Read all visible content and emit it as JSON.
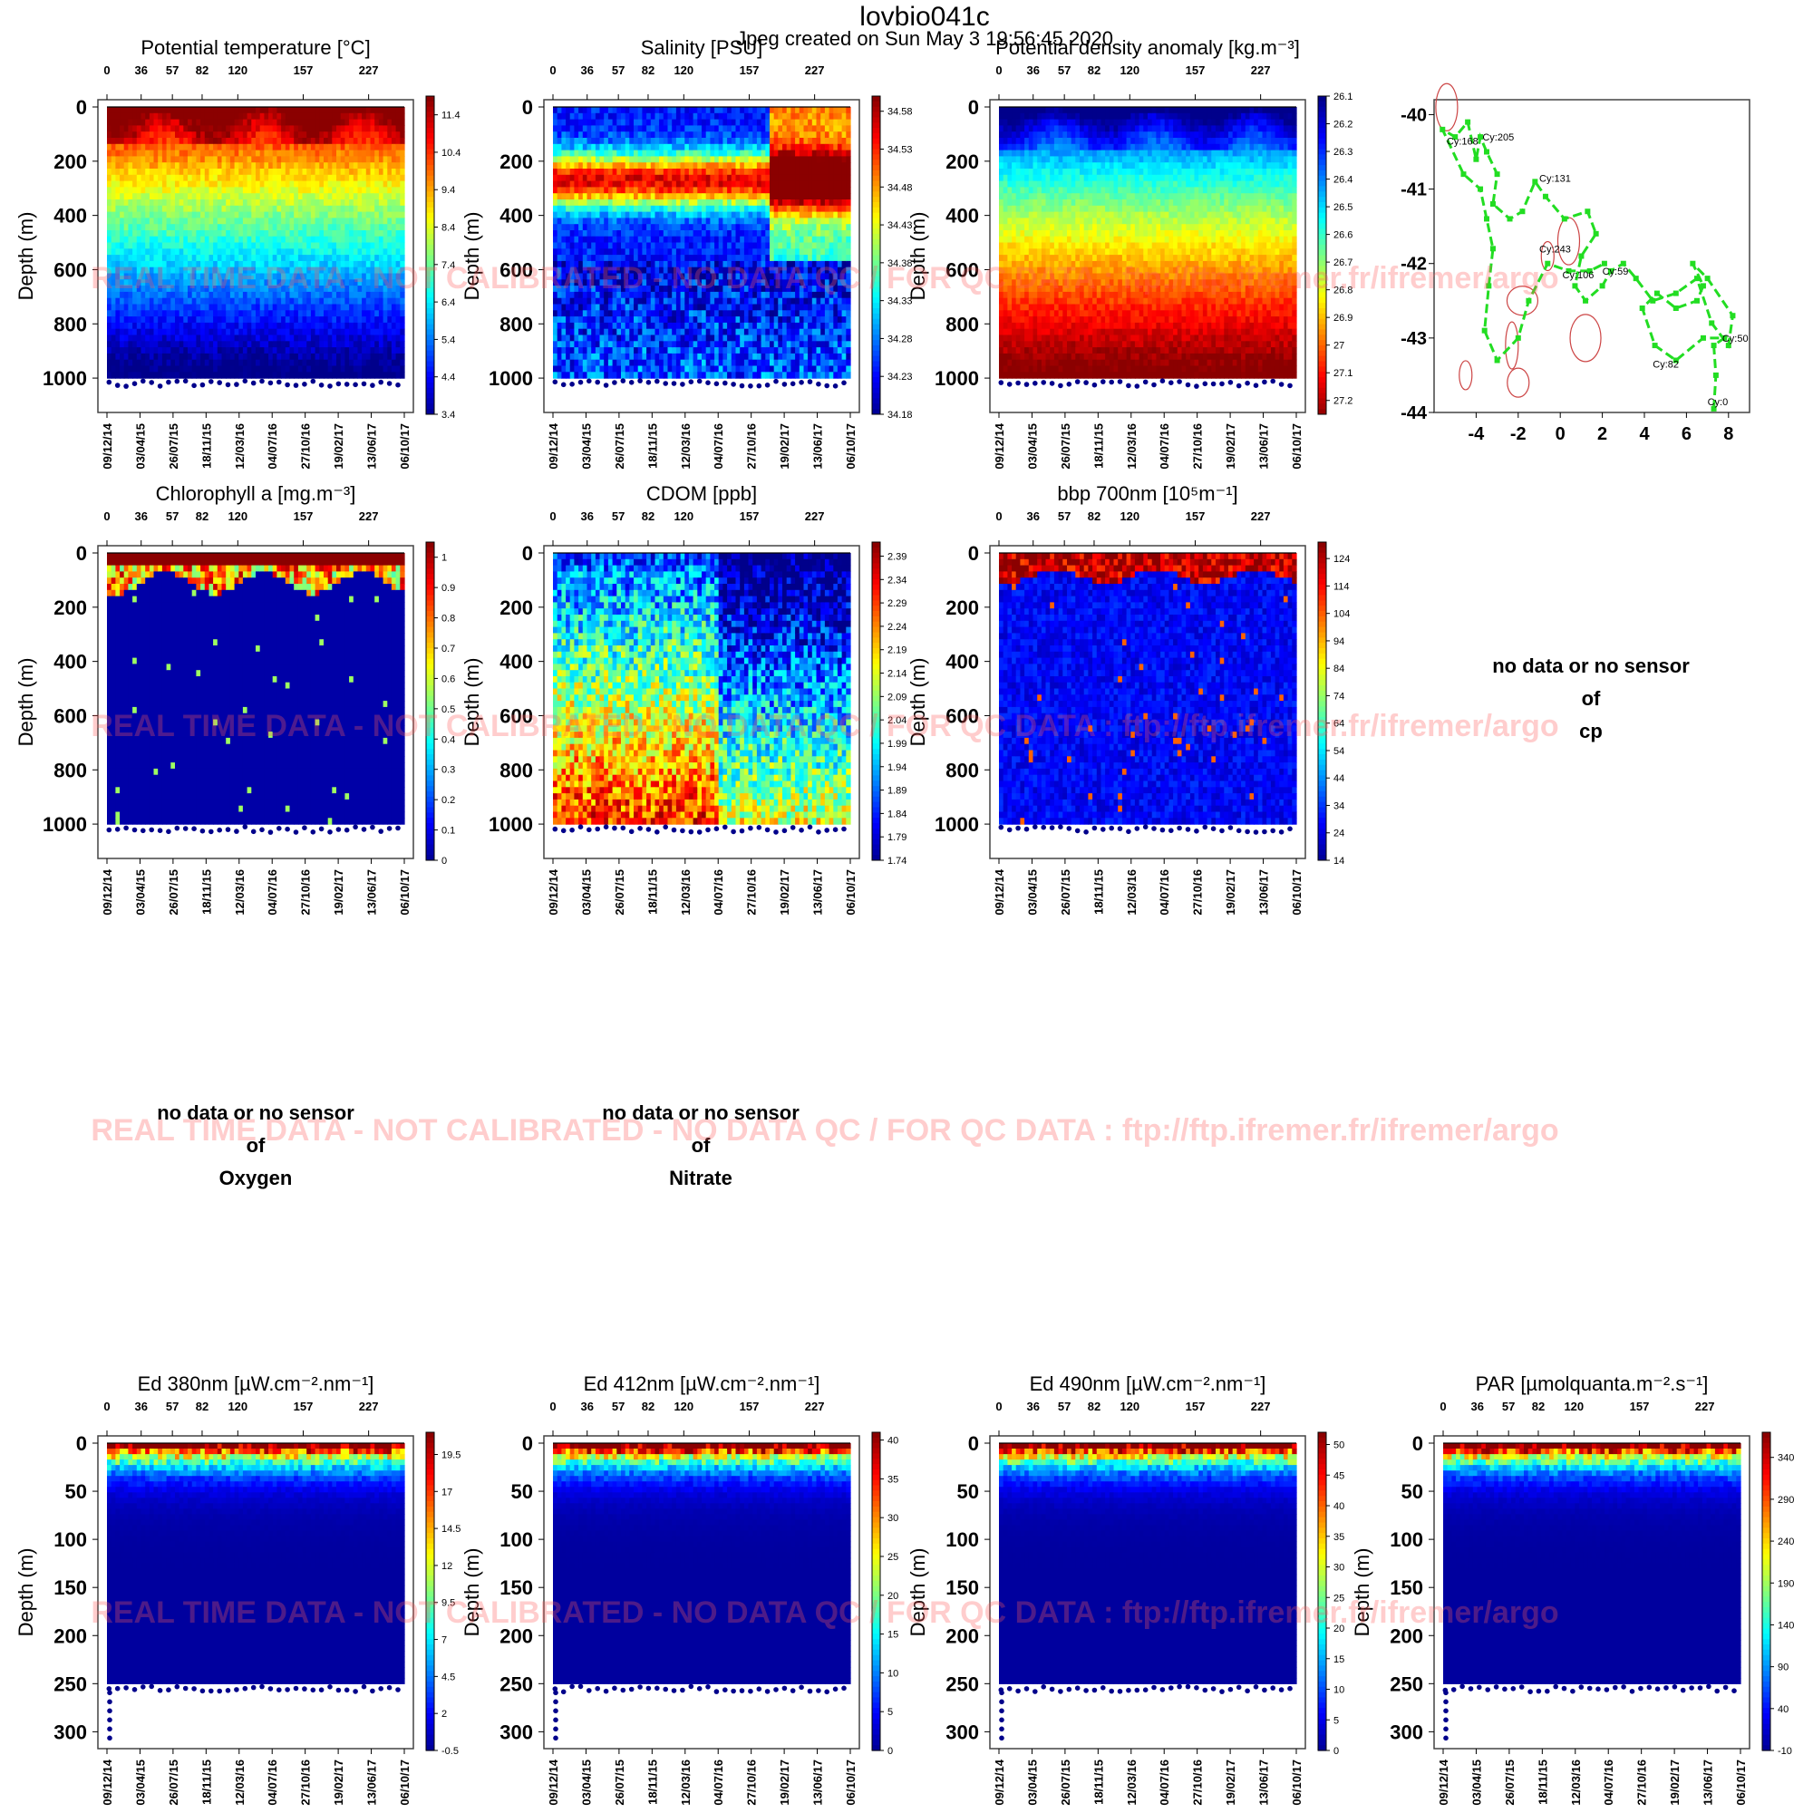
{
  "header": {
    "title": "lovbio041c",
    "subtitle": "Jpeg created on  Sun May  3 19:56:45 2020"
  },
  "watermark": "REAL TIME DATA - NOT CALIBRATED - NO DATA QC   /  FOR QC DATA : ftp://ftp.ifremer.fr/ifremer/argo",
  "colors": {
    "colormap": [
      "#00008b",
      "#0000ff",
      "#007fff",
      "#00ffff",
      "#7fff7f",
      "#ffff00",
      "#ff7f00",
      "#ff0000",
      "#8b0000"
    ],
    "track": "#22dd22",
    "contour": "#cc4444",
    "watermark": "#ff5a5a"
  },
  "cycle_ticks": [
    "0",
    "36",
    "57",
    "82",
    "120",
    "157",
    "227"
  ],
  "date_ticks": [
    "09/12/14",
    "03/04/15",
    "26/07/15",
    "18/11/15",
    "12/03/16",
    "04/07/16",
    "27/10/16",
    "19/02/17",
    "13/06/17",
    "06/10/17"
  ],
  "ylabel": "Depth (m)",
  "no_data_panels": [
    {
      "line1": "no data or no sensor",
      "line2": "of",
      "line3": "cp"
    },
    {
      "line1": "no data or no sensor",
      "line2": "of",
      "line3": "Oxygen"
    },
    {
      "line1": "no data or no sensor",
      "line2": "of",
      "line3": "Nitrate"
    }
  ],
  "chart_data": [
    {
      "type": "heatmap",
      "title": "Potential temperature [°C]",
      "ylabel": "Depth (m)",
      "ylim": [
        1100,
        0
      ],
      "yticks": [
        0,
        200,
        400,
        600,
        800,
        1000
      ],
      "colorbar": [
        "3.4",
        "4.4",
        "5.4",
        "6.4",
        "7.4",
        "8.4",
        "9.4",
        "10.4",
        "11.4"
      ],
      "cmin": 3.4,
      "cmax": 11.9,
      "pattern": "temp"
    },
    {
      "type": "heatmap",
      "title": "Salinity [PSU]",
      "ylabel": "Depth (m)",
      "ylim": [
        1100,
        0
      ],
      "yticks": [
        0,
        200,
        400,
        600,
        800,
        1000
      ],
      "colorbar": [
        "34.18",
        "34.23",
        "34.28",
        "34.33",
        "34.38",
        "34.43",
        "34.48",
        "34.53",
        "34.58"
      ],
      "cmin": 34.18,
      "cmax": 34.6,
      "pattern": "sal"
    },
    {
      "type": "heatmap",
      "title": "Potential density anomaly [kg.m⁻³]",
      "ylabel": "Depth (m)",
      "ylim": [
        1100,
        0
      ],
      "yticks": [
        0,
        200,
        400,
        600,
        800,
        1000
      ],
      "colorbar": [
        "26.1",
        "26.2",
        "26.3",
        "26.4",
        "26.5",
        "26.6",
        "26.7",
        "26.8",
        "26.9",
        "27",
        "27.1",
        "27.2"
      ],
      "cmin": 26.1,
      "cmax": 27.25,
      "reverse": true,
      "pattern": "dens"
    },
    {
      "type": "scatter",
      "title": "",
      "xlim": [
        -6,
        9
      ],
      "ylim": [
        -44,
        -39.8
      ],
      "xticks": [
        "-4",
        "-2",
        "0",
        "2",
        "4",
        "6",
        "8"
      ],
      "yticks": [
        "-40",
        "-41",
        "-42",
        "-43",
        "-44"
      ],
      "labels": [
        {
          "text": "Cy:168",
          "x": -5.4,
          "y": -40.4
        },
        {
          "text": "Cy:205",
          "x": -3.7,
          "y": -40.35
        },
        {
          "text": "Cy:131",
          "x": -1.0,
          "y": -40.9
        },
        {
          "text": "Cy:243",
          "x": -1.0,
          "y": -41.85
        },
        {
          "text": "Cy:106",
          "x": 0.1,
          "y": -42.2
        },
        {
          "text": "Cy:59",
          "x": 2.0,
          "y": -42.15
        },
        {
          "text": "Cy:82",
          "x": 4.4,
          "y": -43.4
        },
        {
          "text": "Cy:50",
          "x": 7.7,
          "y": -43.05
        },
        {
          "text": "Cy:0",
          "x": 7.0,
          "y": -43.9
        }
      ],
      "track": [
        [
          7.3,
          -43.95
        ],
        [
          7.4,
          -43.5
        ],
        [
          7.3,
          -43.1
        ],
        [
          7.8,
          -43.0
        ],
        [
          6.8,
          -43.0
        ],
        [
          5.5,
          -43.3
        ],
        [
          4.5,
          -43.1
        ],
        [
          3.9,
          -42.6
        ],
        [
          4.6,
          -42.4
        ],
        [
          5.5,
          -42.6
        ],
        [
          6.5,
          -42.5
        ],
        [
          6.8,
          -42.3
        ],
        [
          6.3,
          -42.0
        ],
        [
          7.0,
          -42.2
        ],
        [
          8.2,
          -42.7
        ],
        [
          8.0,
          -43.1
        ],
        [
          7.2,
          -42.8
        ],
        [
          6.5,
          -42.2
        ],
        [
          5.5,
          -42.4
        ],
        [
          4.4,
          -42.5
        ],
        [
          3.6,
          -42.2
        ],
        [
          3.0,
          -42.0
        ],
        [
          2.4,
          -42.1
        ],
        [
          2.0,
          -42.3
        ],
        [
          1.2,
          -42.5
        ],
        [
          0.7,
          -42.3
        ],
        [
          1.0,
          -41.9
        ],
        [
          1.7,
          -41.6
        ],
        [
          1.3,
          -41.3
        ],
        [
          0.2,
          -41.4
        ],
        [
          -0.7,
          -41.1
        ],
        [
          -1.2,
          -40.9
        ],
        [
          -1.8,
          -41.3
        ],
        [
          -2.4,
          -41.4
        ],
        [
          -3.2,
          -41.2
        ],
        [
          -3.0,
          -40.8
        ],
        [
          -3.5,
          -40.5
        ],
        [
          -3.8,
          -40.3
        ],
        [
          -4.0,
          -40.6
        ],
        [
          -4.4,
          -40.1
        ],
        [
          -5.0,
          -40.3
        ],
        [
          -5.6,
          -40.2
        ],
        [
          -4.6,
          -40.8
        ],
        [
          -3.8,
          -41.0
        ],
        [
          -3.5,
          -41.4
        ],
        [
          -3.2,
          -41.8
        ],
        [
          -3.4,
          -42.3
        ],
        [
          -3.6,
          -42.9
        ],
        [
          -3.0,
          -43.3
        ],
        [
          -2.0,
          -43.0
        ],
        [
          -1.5,
          -42.5
        ],
        [
          -0.6,
          -42.0
        ],
        [
          0.4,
          -42.1
        ],
        [
          1.4,
          -42.1
        ],
        [
          2.1,
          -42.0
        ]
      ],
      "contours": [
        [
          -0.6,
          -41.9
        ],
        [
          0.4,
          -41.7
        ],
        [
          -1.8,
          -42.5
        ],
        [
          -2.3,
          -43.1
        ],
        [
          -2.0,
          -43.6
        ],
        [
          1.2,
          -43.0
        ],
        [
          -4.5,
          -43.5
        ],
        [
          -5.4,
          -39.9
        ]
      ]
    },
    {
      "type": "heatmap",
      "title": "Chlorophyll a [mg.m⁻³]",
      "ylabel": "Depth (m)",
      "ylim": [
        1100,
        0
      ],
      "yticks": [
        0,
        200,
        400,
        600,
        800,
        1000
      ],
      "colorbar": [
        "0",
        "0.1",
        "0.2",
        "0.3",
        "0.4",
        "0.5",
        "0.6",
        "0.7",
        "0.8",
        "0.9",
        "1"
      ],
      "cmin": 0,
      "cmax": 1.05,
      "pattern": "chl"
    },
    {
      "type": "heatmap",
      "title": "CDOM  [ppb]",
      "ylabel": "Depth (m)",
      "ylim": [
        1100,
        0
      ],
      "yticks": [
        0,
        200,
        400,
        600,
        800,
        1000
      ],
      "colorbar": [
        "1.74",
        "1.79",
        "1.84",
        "1.89",
        "1.94",
        "1.99",
        "2.04",
        "2.09",
        "2.14",
        "2.19",
        "2.24",
        "2.29",
        "2.34",
        "2.39"
      ],
      "cmin": 1.74,
      "cmax": 2.42,
      "pattern": "cdom"
    },
    {
      "type": "heatmap",
      "title": "bbp 700nm [10⁵m⁻¹]",
      "ylabel": "Depth (m)",
      "ylim": [
        1100,
        0
      ],
      "yticks": [
        0,
        200,
        400,
        600,
        800,
        1000
      ],
      "colorbar": [
        "14",
        "24",
        "34",
        "44",
        "54",
        "64",
        "74",
        "84",
        "94",
        "104",
        "114",
        "124"
      ],
      "cmin": 14,
      "cmax": 130,
      "pattern": "bbp"
    },
    {
      "type": "heatmap",
      "title": "Ed 380nm [µW.cm⁻².nm⁻¹]",
      "ylabel": "Depth (m)",
      "ylim": [
        310,
        0
      ],
      "yticks": [
        0,
        50,
        100,
        150,
        200,
        250,
        300
      ],
      "colorbar": [
        "-0.5",
        "2",
        "4.5",
        "7",
        "9.5",
        "12",
        "14.5",
        "17",
        "19.5"
      ],
      "cmin": -0.5,
      "cmax": 21,
      "pattern": "ed"
    },
    {
      "type": "heatmap",
      "title": "Ed 412nm [µW.cm⁻².nm⁻¹]",
      "ylabel": "Depth (m)",
      "ylim": [
        310,
        0
      ],
      "yticks": [
        0,
        50,
        100,
        150,
        200,
        250,
        300
      ],
      "colorbar": [
        "0",
        "5",
        "10",
        "15",
        "20",
        "25",
        "30",
        "35",
        "40"
      ],
      "cmin": 0,
      "cmax": 41,
      "pattern": "ed"
    },
    {
      "type": "heatmap",
      "title": "Ed 490nm [µW.cm⁻².nm⁻¹]",
      "ylabel": "Depth (m)",
      "ylim": [
        310,
        0
      ],
      "yticks": [
        0,
        50,
        100,
        150,
        200,
        250,
        300
      ],
      "colorbar": [
        "0",
        "5",
        "10",
        "15",
        "20",
        "25",
        "30",
        "35",
        "40",
        "45",
        "50"
      ],
      "cmin": 0,
      "cmax": 52,
      "pattern": "ed"
    },
    {
      "type": "heatmap",
      "title": "PAR [µmolquanta.m⁻².s⁻¹]",
      "ylabel": "Depth (m)",
      "ylim": [
        310,
        0
      ],
      "yticks": [
        0,
        50,
        100,
        150,
        200,
        250,
        300
      ],
      "colorbar": [
        "-10",
        "40",
        "90",
        "140",
        "190",
        "240",
        "290",
        "340"
      ],
      "cmin": -10,
      "cmax": 370,
      "pattern": "ed"
    }
  ]
}
